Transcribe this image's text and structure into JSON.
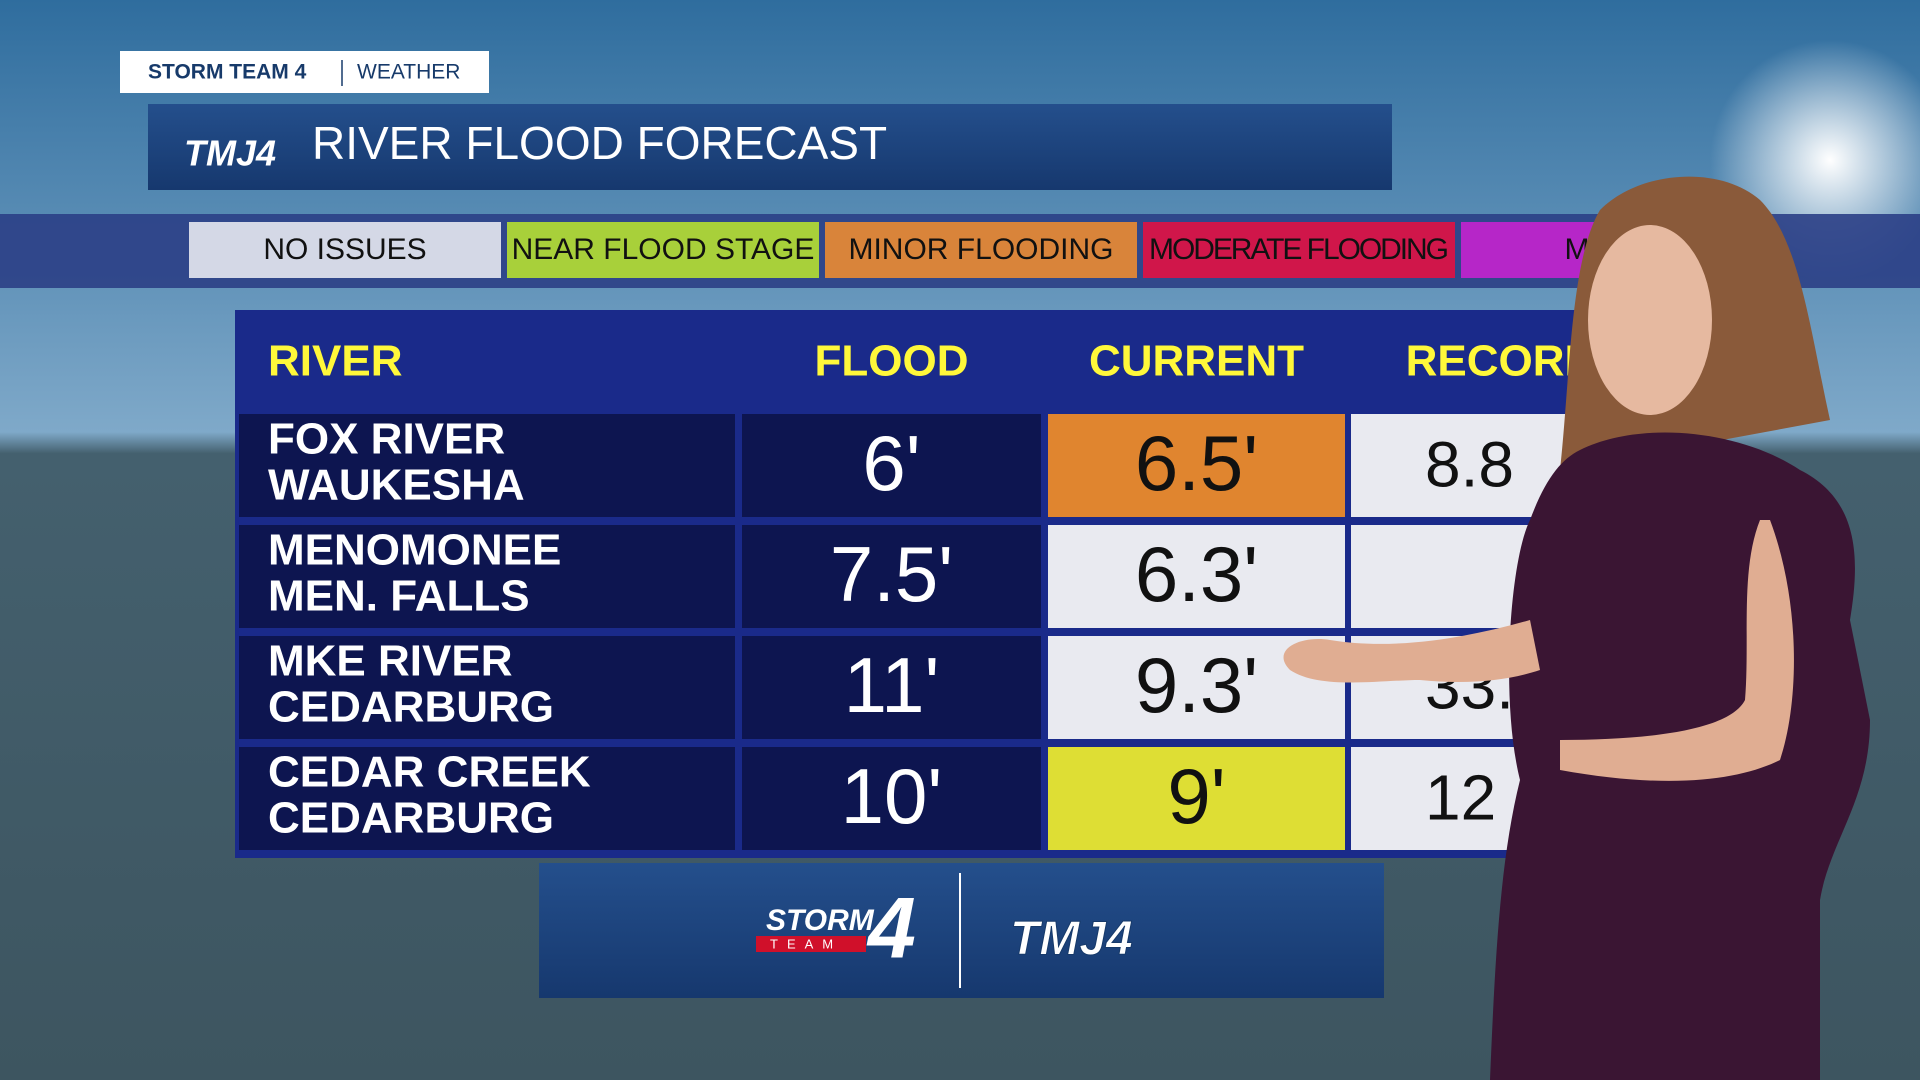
{
  "tag": {
    "brand": "STORM TEAM 4",
    "section": "WEATHER"
  },
  "header": {
    "logo": "TMJ4",
    "title": "RIVER FLOOD FORECAST"
  },
  "legend": [
    "NO ISSUES",
    "NEAR FLOOD STAGE",
    "MINOR FLOODING",
    "MODERATE FLOODING",
    "MAJOR"
  ],
  "table": {
    "columns": [
      "RIVER",
      "FLOOD",
      "CURRENT",
      "RECORD"
    ],
    "rows": [
      {
        "river": "FOX RIVER",
        "location": "WAUKESHA",
        "flood": "6'",
        "current": "6.5'",
        "record": "8.8"
      },
      {
        "river": "MENOMONEE",
        "location": "MEN. FALLS",
        "flood": "7.5'",
        "current": "6.3'"
      },
      {
        "river": "MKE RIVER",
        "location": "CEDARBURG",
        "flood": "11'",
        "current": "9.3'",
        "record": "33."
      },
      {
        "river": "CEDAR CREEK",
        "location": "CEDARBURG",
        "flood": "10'",
        "current": "9'",
        "record": "12"
      }
    ]
  },
  "footer": {
    "storm": "STORM",
    "team": "TEAM",
    "four": "4",
    "tmj": "TMJ4"
  }
}
